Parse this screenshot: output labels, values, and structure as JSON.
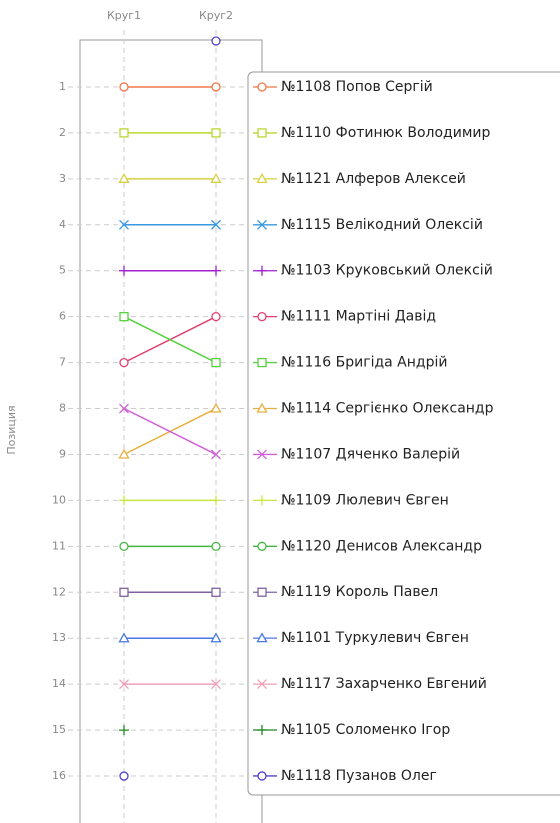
{
  "chart_data": {
    "type": "line",
    "y_label": "Позиция",
    "categories": [
      "Круг1",
      "Круг2"
    ],
    "ylim": [
      0,
      17
    ],
    "y_inverted": true,
    "yticks": [
      1,
      2,
      3,
      4,
      5,
      6,
      7,
      8,
      9,
      10,
      11,
      12,
      13,
      14,
      15,
      16
    ],
    "grid": true,
    "series": [
      {
        "name": "№1108 Попов Сергій",
        "color": "#f07848",
        "marker": "circle",
        "values": [
          1,
          1
        ]
      },
      {
        "name": "№1110 Фотинюк Володимир",
        "color": "#b8d830",
        "marker": "square",
        "values": [
          2,
          2
        ]
      },
      {
        "name": "№1121 Алферов Алексей",
        "color": "#d8d040",
        "marker": "triangle",
        "values": [
          3,
          3
        ]
      },
      {
        "name": "№1115 Велікодний Олексій",
        "color": "#3898e0",
        "marker": "x",
        "values": [
          4,
          4
        ]
      },
      {
        "name": "№1103 Круковський Олексій",
        "color": "#a020d0",
        "marker": "plus",
        "values": [
          5,
          5
        ]
      },
      {
        "name": "№1111 Мартіні Давід",
        "color": "#e04070",
        "marker": "circle",
        "values": [
          7,
          6
        ]
      },
      {
        "name": "№1116 Бригіда Андрій",
        "color": "#58d040",
        "marker": "square",
        "values": [
          6,
          7
        ]
      },
      {
        "name": "№1114 Сергієнко Олександр",
        "color": "#e8b040",
        "marker": "triangle",
        "values": [
          9,
          8
        ]
      },
      {
        "name": "№1107 Дяченко Валерій",
        "color": "#d060d8",
        "marker": "x",
        "values": [
          8,
          9
        ]
      },
      {
        "name": "№1109 Люлевич Євген",
        "color": "#c8e840",
        "marker": "plus",
        "values": [
          10,
          10
        ]
      },
      {
        "name": "№1120 Денисов Александр",
        "color": "#40b840",
        "marker": "circle",
        "values": [
          11,
          11
        ]
      },
      {
        "name": "№1119 Король Павел",
        "color": "#8060a0",
        "marker": "square",
        "values": [
          12,
          12
        ]
      },
      {
        "name": "№1101 Туркулевич Євген",
        "color": "#4878e0",
        "marker": "triangle",
        "values": [
          13,
          13
        ]
      },
      {
        "name": "№1117 Захарченко Евгений",
        "color": "#f0a0b8",
        "marker": "x",
        "values": [
          14,
          14
        ]
      },
      {
        "name": "№1105 Соломенко Ігор",
        "color": "#208820",
        "marker": "plus",
        "values": [
          15,
          null
        ]
      },
      {
        "name": "№1118 Пузанов Олег",
        "color": "#5040d0",
        "marker": "circle",
        "line": false,
        "values": [
          16,
          0
        ]
      }
    ]
  }
}
